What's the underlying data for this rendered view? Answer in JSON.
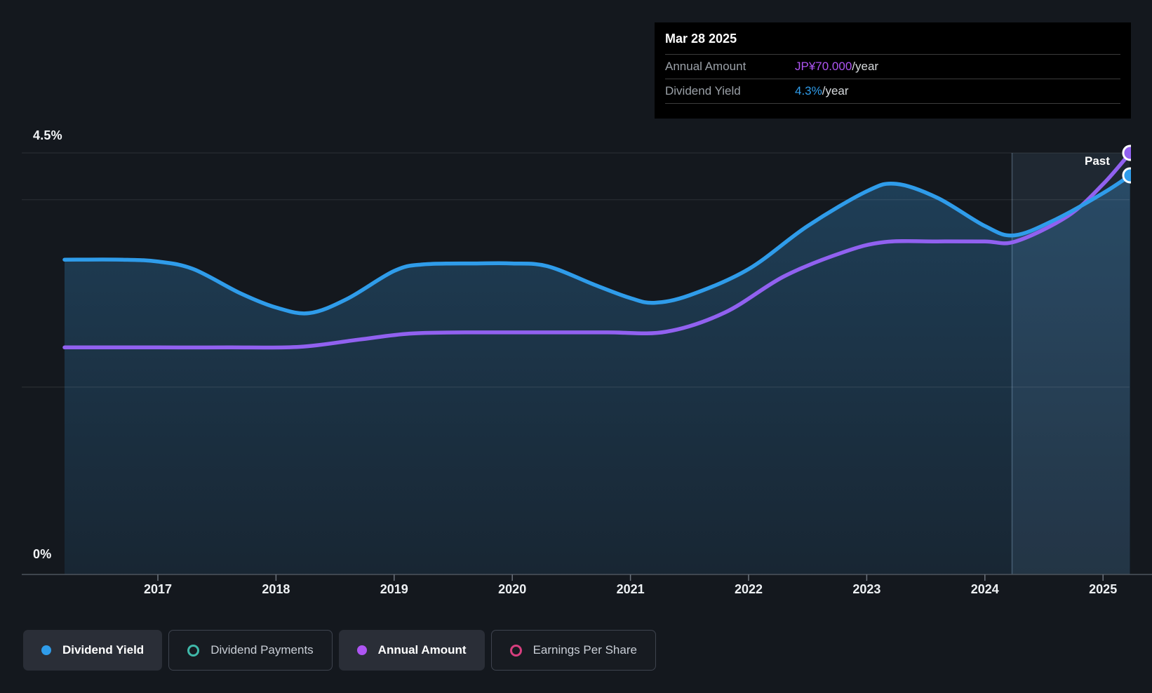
{
  "colors": {
    "blue": "#2F9CEA",
    "purple": "#9161F0",
    "purple_bright": "#AE55F3",
    "teal": "#3FB8A9",
    "pink": "#D63E7E"
  },
  "tooltip": {
    "date": "Mar 28 2025",
    "rows": [
      {
        "label": "Annual Amount",
        "value": "JP¥70.000",
        "suffix": "/year",
        "color_key": "purple_bright"
      },
      {
        "label": "Dividend Yield",
        "value": "4.3%",
        "suffix": "/year",
        "color_key": "blue"
      }
    ]
  },
  "annotations": {
    "past_label": "Past"
  },
  "legend": {
    "items": [
      {
        "label": "Dividend Yield",
        "marker": "filled",
        "color_key": "blue",
        "active": true
      },
      {
        "label": "Dividend Payments",
        "marker": "ring",
        "color_key": "teal",
        "active": false
      },
      {
        "label": "Annual Amount",
        "marker": "filled",
        "color_key": "purple_bright",
        "active": true
      },
      {
        "label": "Earnings Per Share",
        "marker": "ring",
        "color_key": "pink",
        "active": false
      }
    ]
  },
  "chart_data": {
    "type": "area",
    "title": "Dividend yield and annual dividend amount over time",
    "x_ticks": [
      "2017",
      "2018",
      "2019",
      "2020",
      "2021",
      "2022",
      "2023",
      "2024",
      "2025"
    ],
    "x_range": [
      2016.21,
      2025.23
    ],
    "past_divider_year": 2024.23,
    "y_axis": {
      "labels": [
        "4.5%",
        "0%"
      ],
      "ylim_pct": [
        0,
        4.5
      ],
      "gridline_values_pct": [
        4.5,
        4.0,
        2.0
      ],
      "baseline_pct": 0
    },
    "series": [
      {
        "name": "Dividend Yield",
        "unit": "%",
        "color_key": "blue",
        "hidden": false,
        "area_fill": true,
        "end_value_label": "4.3%",
        "points": [
          [
            2016.21,
            3.36
          ],
          [
            2016.7,
            3.36
          ],
          [
            2017.0,
            3.34
          ],
          [
            2017.3,
            3.26
          ],
          [
            2017.7,
            3.0
          ],
          [
            2018.0,
            2.85
          ],
          [
            2018.28,
            2.79
          ],
          [
            2018.6,
            2.94
          ],
          [
            2019.0,
            3.24
          ],
          [
            2019.25,
            3.31
          ],
          [
            2019.7,
            3.32
          ],
          [
            2020.0,
            3.32
          ],
          [
            2020.3,
            3.29
          ],
          [
            2020.7,
            3.09
          ],
          [
            2021.0,
            2.95
          ],
          [
            2021.2,
            2.9
          ],
          [
            2021.5,
            2.98
          ],
          [
            2022.0,
            3.26
          ],
          [
            2022.5,
            3.72
          ],
          [
            2023.0,
            4.09
          ],
          [
            2023.25,
            4.17
          ],
          [
            2023.6,
            4.02
          ],
          [
            2024.0,
            3.72
          ],
          [
            2024.25,
            3.62
          ],
          [
            2024.6,
            3.79
          ],
          [
            2025.0,
            4.07
          ],
          [
            2025.23,
            4.26
          ]
        ]
      },
      {
        "name": "Annual Amount",
        "unit": "JP¥/year",
        "color_key": "purple",
        "hidden": false,
        "area_fill": false,
        "end_value_label": "JP¥70.000",
        "points": [
          [
            2016.21,
            37.7
          ],
          [
            2017.0,
            37.7
          ],
          [
            2017.6,
            37.7
          ],
          [
            2018.2,
            37.8
          ],
          [
            2018.7,
            39.0
          ],
          [
            2019.13,
            40.0
          ],
          [
            2019.6,
            40.2
          ],
          [
            2020.2,
            40.2
          ],
          [
            2020.8,
            40.2
          ],
          [
            2021.3,
            40.3
          ],
          [
            2021.8,
            43.5
          ],
          [
            2022.3,
            49.5
          ],
          [
            2022.8,
            53.5
          ],
          [
            2023.15,
            55.2
          ],
          [
            2023.6,
            55.3
          ],
          [
            2024.0,
            55.3
          ],
          [
            2024.26,
            55.3
          ],
          [
            2024.7,
            59.5
          ],
          [
            2025.0,
            64.8
          ],
          [
            2025.23,
            70.0
          ]
        ]
      },
      {
        "name": "Dividend Payments",
        "color_key": "teal",
        "hidden": true,
        "points": []
      },
      {
        "name": "Earnings Per Share",
        "color_key": "pink",
        "hidden": true,
        "points": []
      }
    ]
  }
}
